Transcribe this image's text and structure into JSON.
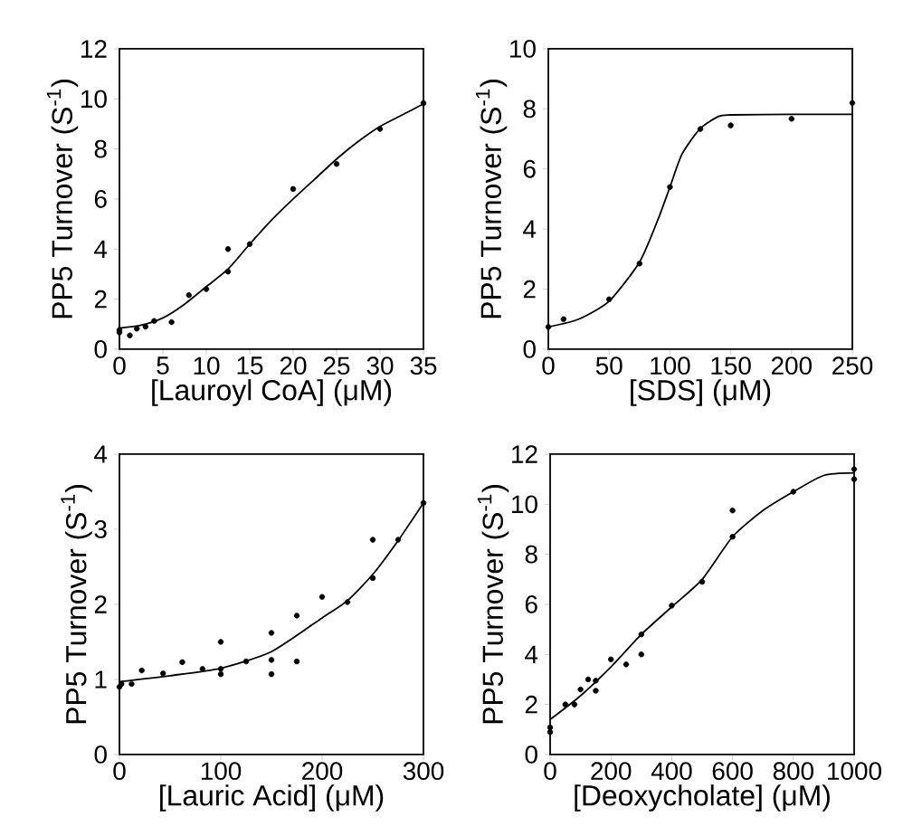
{
  "chart_data": [
    {
      "type": "scatter",
      "xlabel": "[Lauroyl CoA] (μM)",
      "ylabel": "PP5 Turnover (S$^{-1}$)",
      "xlim": [
        0,
        35
      ],
      "ylim": [
        0,
        12
      ],
      "xticks": [
        0,
        5,
        10,
        15,
        20,
        25,
        30,
        35
      ],
      "yticks": [
        0,
        2,
        4,
        6,
        8,
        10,
        12
      ],
      "series": [
        {
          "marker": "circle",
          "color": "#000000",
          "x": [
            0,
            0,
            1.2,
            2,
            3,
            4,
            6,
            8,
            10,
            12.5,
            12.5,
            15,
            20,
            25,
            30,
            35
          ],
          "values": [
            0.77,
            0.67,
            0.55,
            0.82,
            0.9,
            1.13,
            1.08,
            2.16,
            2.4,
            4.0,
            3.1,
            4.2,
            6.4,
            7.4,
            8.8,
            9.83
          ]
        },
        {
          "type": "line",
          "marker": "none",
          "color": "#000000",
          "x": [
            0,
            2.5,
            5,
            7.5,
            10,
            12.5,
            15,
            17.5,
            20,
            22.5,
            25,
            27.5,
            30,
            32.5,
            35
          ],
          "values": [
            0.84,
            0.96,
            1.25,
            1.8,
            2.5,
            3.2,
            4.2,
            5.15,
            6.0,
            6.8,
            7.6,
            8.3,
            8.9,
            9.35,
            9.8
          ]
        }
      ]
    },
    {
      "type": "scatter",
      "xlabel": "[SDS] (μM)",
      "ylabel": "PP5 Turnover (S$^{-1}$)",
      "xlim": [
        0,
        250
      ],
      "ylim": [
        0,
        10
      ],
      "xticks": [
        0,
        50,
        100,
        150,
        200,
        250
      ],
      "yticks": [
        0,
        2,
        4,
        6,
        8,
        10
      ],
      "series": [
        {
          "marker": "circle",
          "color": "#000000",
          "x": [
            0,
            12.5,
            50,
            75,
            100,
            125,
            150,
            200,
            250
          ],
          "values": [
            0.74,
            1.0,
            1.66,
            2.85,
            5.4,
            7.33,
            7.45,
            7.67,
            8.2
          ]
        },
        {
          "type": "line",
          "marker": "none",
          "color": "#000000",
          "x": [
            0,
            25,
            50,
            75,
            90,
            100,
            110,
            125,
            140,
            150,
            200,
            250
          ],
          "values": [
            0.74,
            1.0,
            1.6,
            2.9,
            4.3,
            5.4,
            6.5,
            7.35,
            7.75,
            7.8,
            7.82,
            7.82
          ]
        }
      ]
    },
    {
      "type": "scatter",
      "xlabel": "[Lauric Acid] (μM)",
      "ylabel": "PP5 Turnover (S$^{-1}$)",
      "xlim": [
        0,
        300
      ],
      "ylim": [
        0,
        4
      ],
      "xticks": [
        0,
        100,
        200,
        300
      ],
      "yticks": [
        0,
        1,
        2,
        3,
        4
      ],
      "series": [
        {
          "marker": "circle",
          "color": "#000000",
          "x": [
            0,
            2,
            12,
            22,
            43,
            62,
            82,
            100,
            100,
            100,
            125,
            150,
            150,
            150,
            175,
            175,
            200,
            225,
            250,
            250,
            275,
            300
          ],
          "values": [
            0.9,
            0.94,
            0.94,
            1.12,
            1.08,
            1.23,
            1.14,
            1.5,
            1.14,
            1.07,
            1.24,
            1.62,
            1.26,
            1.07,
            1.85,
            1.24,
            2.1,
            2.03,
            2.86,
            2.35,
            2.86,
            3.35
          ]
        },
        {
          "type": "line",
          "marker": "none",
          "color": "#000000",
          "x": [
            0,
            50,
            100,
            150,
            200,
            225,
            250,
            275,
            300
          ],
          "values": [
            0.97,
            1.05,
            1.15,
            1.37,
            1.82,
            2.05,
            2.4,
            2.85,
            3.35
          ]
        }
      ]
    },
    {
      "type": "scatter",
      "xlabel": "[Deoxycholate] (μM)",
      "ylabel": "PP5 Turnover (S$^{-1}$)",
      "xlim": [
        0,
        1000
      ],
      "ylim": [
        0,
        12
      ],
      "xticks": [
        0,
        200,
        400,
        600,
        800,
        1000
      ],
      "yticks": [
        0,
        2,
        4,
        6,
        8,
        10,
        12
      ],
      "series": [
        {
          "marker": "circle",
          "color": "#000000",
          "x": [
            0,
            0,
            50,
            80,
            100,
            125,
            150,
            150,
            200,
            250,
            300,
            300,
            400,
            500,
            600,
            600,
            800,
            1000,
            1000
          ],
          "values": [
            1.08,
            0.9,
            2.0,
            2.0,
            2.6,
            3.0,
            2.95,
            2.55,
            3.8,
            3.6,
            4.8,
            4.0,
            5.95,
            6.9,
            9.75,
            8.7,
            10.5,
            11.4,
            11.0
          ]
        },
        {
          "type": "line",
          "marker": "none",
          "color": "#000000",
          "x": [
            0,
            100,
            200,
            300,
            400,
            500,
            600,
            700,
            800,
            900,
            1000
          ],
          "values": [
            1.4,
            2.35,
            3.5,
            4.8,
            5.9,
            7.0,
            8.7,
            9.75,
            10.5,
            11.15,
            11.25
          ]
        }
      ]
    }
  ]
}
